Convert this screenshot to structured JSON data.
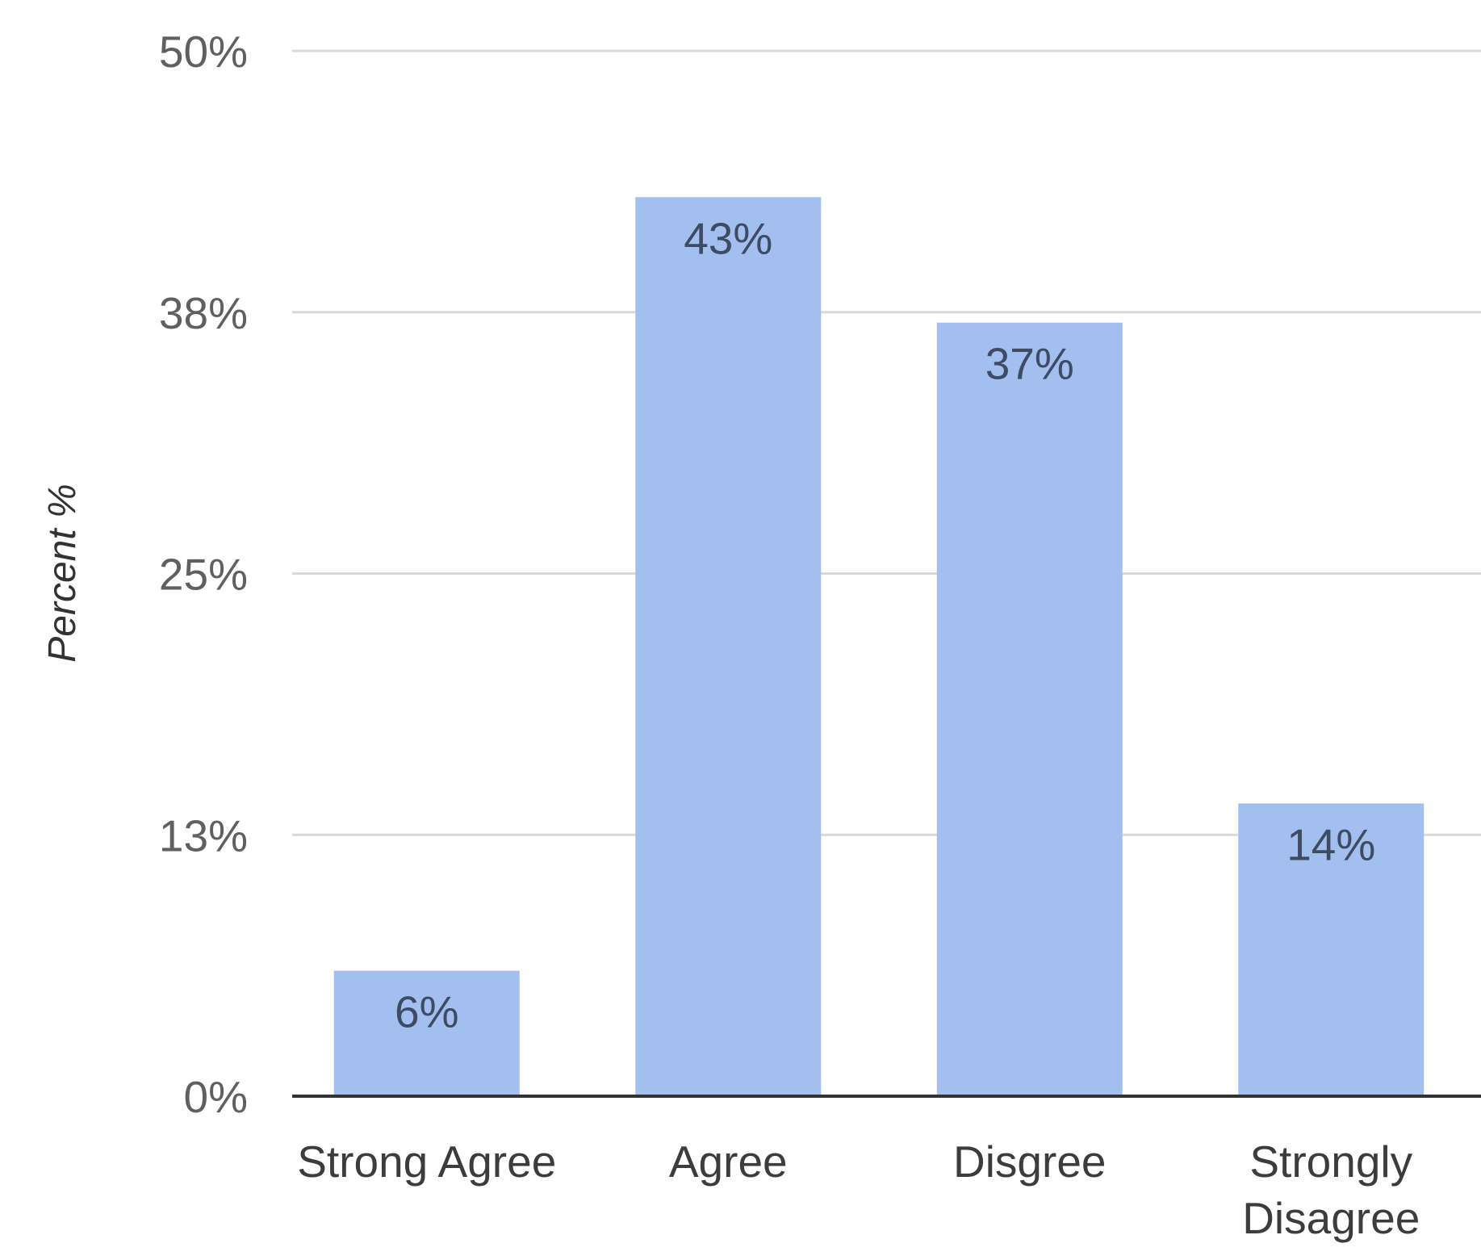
{
  "chart_data": {
    "type": "bar",
    "categories": [
      "Strong Agree",
      "Agree",
      "Disgree",
      "Strongly Disagree"
    ],
    "values": [
      6,
      43,
      37,
      14
    ],
    "data_labels": [
      "6%",
      "43%",
      "37%",
      "14%"
    ],
    "title": "",
    "xlabel": "",
    "ylabel": "Percent %",
    "ylim": [
      0,
      50
    ],
    "yticks": [
      0,
      12.5,
      25,
      37.5,
      50
    ],
    "ytick_labels": [
      "0%",
      "13%",
      "25%",
      "38%",
      "50%"
    ],
    "grid": true,
    "legend": "none",
    "colors": {
      "bar": "#a3bff0",
      "grid": "#d9d9d9",
      "baseline": "#333333"
    }
  }
}
